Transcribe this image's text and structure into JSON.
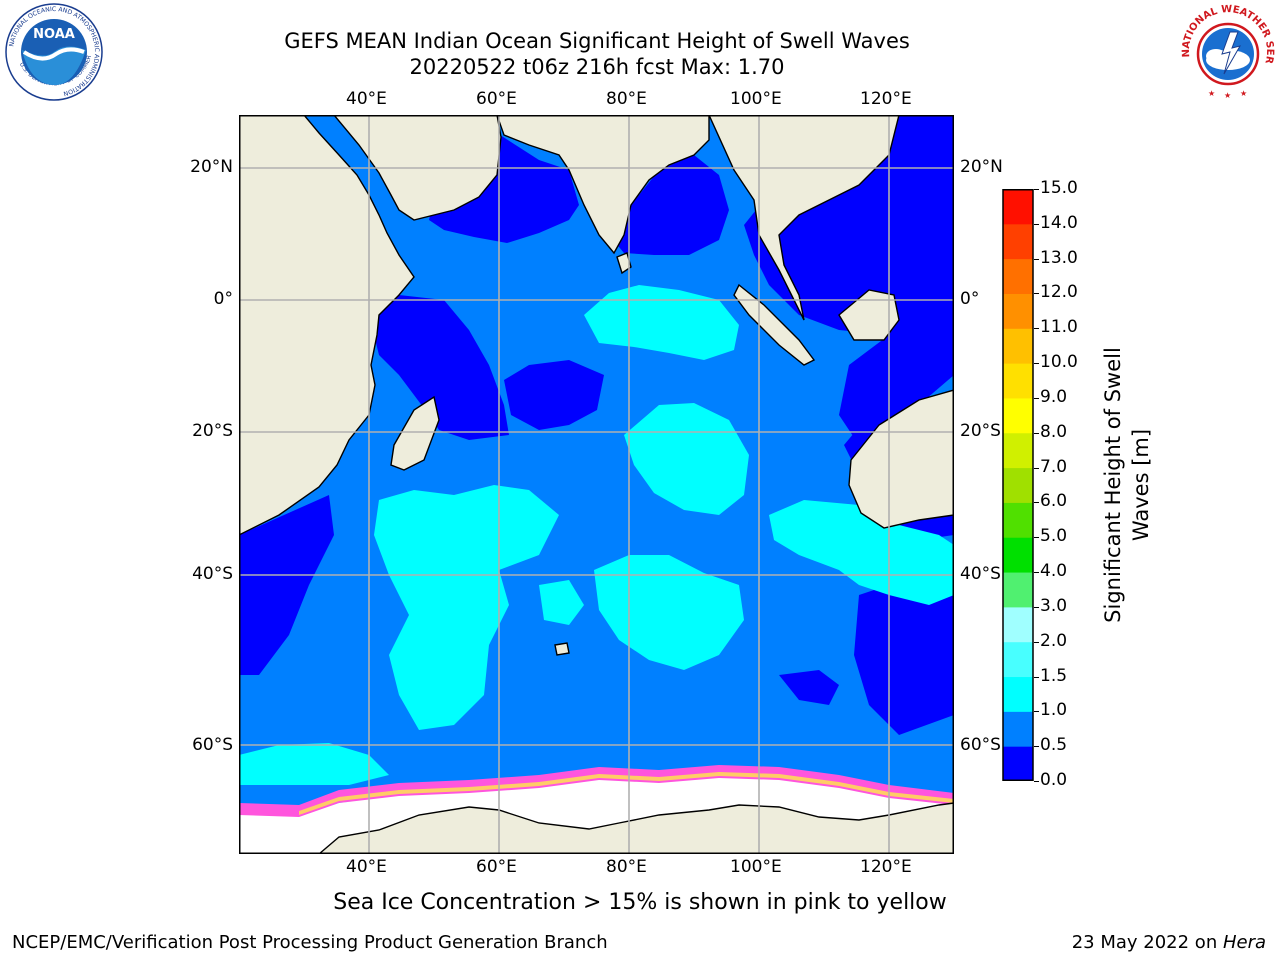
{
  "title": {
    "line1": "GEFS MEAN Indian Ocean Significant Height of Swell Waves",
    "line2": "20220522 t06z 216h fcst   Max: 1.70"
  },
  "map": {
    "lon_ticks_top": [
      "40°E",
      "60°E",
      "80°E",
      "100°E",
      "120°E"
    ],
    "lon_ticks_bottom": [
      "40°E",
      "60°E",
      "80°E",
      "100°E",
      "120°E"
    ],
    "lat_ticks_left": [
      "20°N",
      "0°",
      "20°S",
      "40°S",
      "60°S"
    ],
    "lat_ticks_right": [
      "20°N",
      "0°",
      "20°S",
      "40°S",
      "60°S"
    ],
    "colors": {
      "land": "#eeeddc",
      "sea_ice": "#ffffff",
      "band_0_0.5": "#0000ff",
      "band_0.5_1.0": "#0080ff",
      "band_1.0_1.5": "#00ffff"
    }
  },
  "colorbar": {
    "label": "Significant Height of Swell Waves [m]",
    "ticks": [
      "0.0",
      "0.5",
      "1.0",
      "1.5",
      "2.0",
      "3.0",
      "4.0",
      "5.0",
      "6.0",
      "7.0",
      "8.0",
      "9.0",
      "10.0",
      "11.0",
      "12.0",
      "13.0",
      "14.0",
      "15.0"
    ],
    "colors": [
      "#0000ff",
      "#0080ff",
      "#00ffff",
      "#48ffff",
      "#a0ffff",
      "#50f070",
      "#00e000",
      "#50e000",
      "#a0e000",
      "#d0f000",
      "#ffff00",
      "#ffe000",
      "#ffc000",
      "#ff9000",
      "#ff7000",
      "#ff4000",
      "#ff1000"
    ]
  },
  "sea_ice_note": "Sea Ice Concentration > 15% is shown in pink to yellow",
  "footer": {
    "left": "NCEP/EMC/Verification Post Processing Product Generation Branch",
    "right_date": "23 May 2022 on ",
    "right_host": "Hera"
  },
  "logos": {
    "left": "NOAA",
    "left_ring": "NATIONAL OCEANIC AND ATMOSPHERIC ADMINISTRATION",
    "left_ring_bottom": "U.S. DEPARTMENT OF COMMERCE",
    "right_ring": "NATIONAL WEATHER SERVICE"
  }
}
